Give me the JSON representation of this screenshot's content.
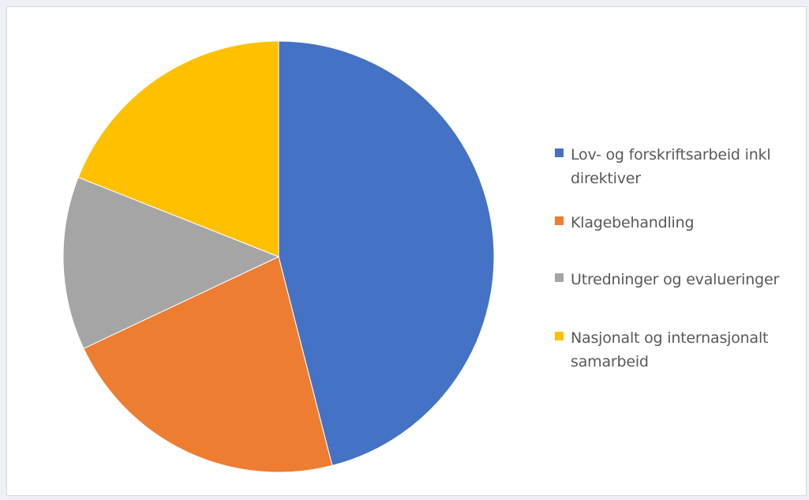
{
  "chart_data": {
    "type": "pie",
    "title": "",
    "categories": [
      "Lov- og forskriftsarbeid inkl direktiver",
      "Klagebehandling",
      "Utredninger og evalueringer",
      "Nasjonalt og internasjonalt samarbeid"
    ],
    "values": [
      46,
      22,
      13,
      19
    ],
    "colors": [
      "#4472c4",
      "#ed7d31",
      "#a5a5a5",
      "#ffc000"
    ],
    "start_angle_deg": 0,
    "direction": "clockwise",
    "legend_position": "right"
  }
}
